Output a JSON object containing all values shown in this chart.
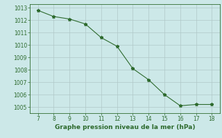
{
  "x": [
    7,
    8,
    9,
    10,
    11,
    12,
    13,
    14,
    15,
    16,
    17,
    18
  ],
  "y": [
    1012.8,
    1012.3,
    1012.1,
    1011.7,
    1010.6,
    1009.9,
    1008.1,
    1007.2,
    1006.0,
    1005.1,
    1005.2,
    1005.2
  ],
  "line_color": "#2d6a2d",
  "marker": "*",
  "marker_size": 3.5,
  "linewidth": 0.8,
  "xlabel": "Graphe pression niveau de la mer (hPa)",
  "xlim": [
    6.5,
    18.5
  ],
  "ylim": [
    1004.5,
    1013.3
  ],
  "yticks": [
    1005,
    1006,
    1007,
    1008,
    1009,
    1010,
    1011,
    1012,
    1013
  ],
  "xticks": [
    7,
    8,
    9,
    10,
    11,
    12,
    13,
    14,
    15,
    16,
    17,
    18
  ],
  "bg_color": "#cce8e8",
  "grid_color": "#b0c8c8",
  "xlabel_fontsize": 6.5,
  "tick_fontsize": 5.5,
  "tick_color": "#2d6a2d",
  "spine_color": "#2d6a2d"
}
